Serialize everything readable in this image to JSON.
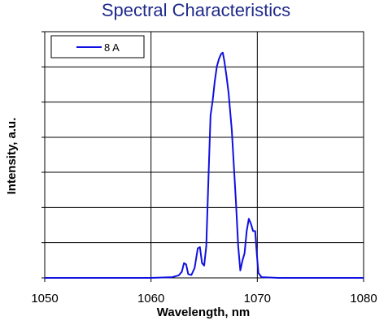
{
  "chart_data": {
    "type": "line",
    "title": "Spectral Characteristics",
    "xlabel": "Wavelength, nm",
    "ylabel": "Intensity, a.u.",
    "xlim": [
      1050,
      1080
    ],
    "ylim": [
      0,
      1
    ],
    "xticks": [
      1050,
      1060,
      1070,
      1080
    ],
    "xtick_labels": [
      "1050",
      "1060",
      "1070",
      "1080"
    ],
    "yticks": [
      0,
      0.143,
      0.286,
      0.429,
      0.571,
      0.714,
      0.857,
      1.0
    ],
    "ytick_labels_visible": false,
    "grid": true,
    "legend_position": "top-left",
    "series_color": "#1010e0",
    "series": [
      {
        "name": "8 A",
        "x": [
          1050,
          1055,
          1060,
          1062.0,
          1062.6,
          1062.9,
          1063.1,
          1063.3,
          1063.5,
          1063.8,
          1064.1,
          1064.4,
          1064.6,
          1064.8,
          1065.0,
          1065.2,
          1065.4,
          1065.6,
          1065.8,
          1066.0,
          1066.2,
          1066.4,
          1066.6,
          1066.75,
          1066.9,
          1067.1,
          1067.3,
          1067.6,
          1067.8,
          1068.0,
          1068.2,
          1068.4,
          1068.6,
          1068.8,
          1069.0,
          1069.2,
          1069.4,
          1069.6,
          1069.8,
          1069.95,
          1070.1,
          1070.4,
          1072,
          1075,
          1080
        ],
        "y": [
          0.0,
          0.0,
          0.0,
          0.003,
          0.01,
          0.025,
          0.06,
          0.055,
          0.015,
          0.012,
          0.04,
          0.12,
          0.125,
          0.06,
          0.05,
          0.13,
          0.4,
          0.66,
          0.72,
          0.8,
          0.86,
          0.89,
          0.91,
          0.915,
          0.88,
          0.82,
          0.75,
          0.6,
          0.45,
          0.3,
          0.13,
          0.03,
          0.07,
          0.1,
          0.19,
          0.24,
          0.22,
          0.19,
          0.19,
          0.1,
          0.02,
          0.003,
          0.0,
          0.0,
          0.0
        ]
      }
    ]
  }
}
